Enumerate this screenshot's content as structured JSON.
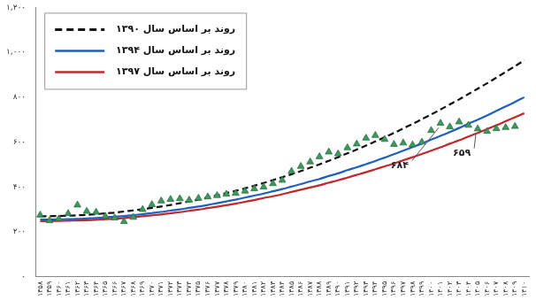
{
  "chart_data": {
    "type": "line",
    "categories": [
      "۱۳۵۸",
      "۱۳۵۹",
      "۱۳۶۰",
      "۱۳۶۱",
      "۱۳۶۲",
      "۱۳۶۳",
      "۱۳۶۴",
      "۱۳۶۵",
      "۱۳۶۶",
      "۱۳۶۷",
      "۱۳۶۸",
      "۱۳۶۹",
      "۱۳۷۰",
      "۱۳۷۱",
      "۱۳۷۲",
      "۱۳۷۳",
      "۱۳۷۴",
      "۱۳۷۵",
      "۱۳۷۶",
      "۱۳۷۷",
      "۱۳۷۸",
      "۱۳۷۹",
      "۱۳۸۰",
      "۱۳۸۱",
      "۱۳۸۲",
      "۱۳۸۳",
      "۱۳۸۴",
      "۱۳۸۵",
      "۱۳۸۶",
      "۱۳۸۷",
      "۱۳۸۸",
      "۱۳۸۹",
      "۱۳۹۰",
      "۱۳۹۱",
      "۱۳۹۲",
      "۱۳۹۳",
      "۱۳۹۴",
      "۱۳۹۵",
      "۱۳۹۶",
      "۱۳۹۷",
      "۱۳۹۸",
      "۱۳۹۹",
      "۱۴۰۰",
      "۱۴۰۱",
      "۱۴۰۲",
      "۱۴۰۳",
      "۱۴۰۴",
      "۱۴۰۵",
      "۱۴۰۶",
      "۱۴۰۷",
      "۱۴۰۸",
      "۱۴۰۹",
      "۱۴۱۰"
    ],
    "series": [
      {
        "name": "روند بر اساس سال ۱۳۹۰",
        "color": "#111111",
        "line_style": "dashed",
        "values": [
          270,
          270,
          271,
          272,
          274,
          276,
          279,
          283,
          286,
          291,
          296,
          301,
          307,
          313,
          320,
          328,
          336,
          344,
          353,
          363,
          373,
          383,
          394,
          406,
          418,
          431,
          444,
          457,
          471,
          486,
          501,
          517,
          533,
          550,
          567,
          585,
          603,
          622,
          641,
          661,
          681,
          702,
          723,
          745,
          768,
          790,
          814,
          838,
          862,
          887,
          913,
          938,
          965
        ]
      },
      {
        "name": "روند بر اساس سال ۱۳۹۴",
        "color": "#1f5fbf",
        "line_style": "solid",
        "values": [
          255,
          255,
          256,
          257,
          258,
          260,
          262,
          265,
          268,
          271,
          275,
          279,
          284,
          289,
          295,
          300,
          307,
          313,
          320,
          328,
          336,
          344,
          353,
          362,
          371,
          381,
          391,
          402,
          413,
          425,
          436,
          449,
          461,
          475,
          488,
          502,
          516,
          531,
          546,
          562,
          578,
          594,
          611,
          628,
          645,
          663,
          682,
          700,
          719,
          739,
          759,
          779,
          800
        ]
      },
      {
        "name": "روند بر اساس سال ۱۳۹۷",
        "color": "#c0282d",
        "line_style": "solid",
        "values": [
          248,
          248,
          249,
          250,
          251,
          252,
          254,
          257,
          259,
          262,
          266,
          270,
          274,
          278,
          283,
          288,
          294,
          299,
          306,
          312,
          319,
          326,
          334,
          342,
          351,
          359,
          368,
          378,
          388,
          398,
          408,
          419,
          430,
          442,
          454,
          466,
          479,
          492,
          505,
          519,
          533,
          547,
          562,
          577,
          593,
          608,
          625,
          641,
          658,
          675,
          693,
          711,
          729
        ]
      },
      {
        "color": "#3d9a5e",
        "marker": "triangle",
        "values": [
          275,
          250,
          258,
          282,
          320,
          292,
          288,
          270,
          262,
          246,
          265,
          300,
          322,
          338,
          345,
          348,
          342,
          350,
          356,
          362,
          368,
          372,
          382,
          392,
          400,
          415,
          430,
          470,
          492,
          512,
          535,
          556,
          548,
          575,
          592,
          618,
          630,
          612,
          590,
          596,
          588,
          600,
          652,
          684,
          668,
          690,
          675,
          659,
          648,
          660,
          665,
          670,
          null
        ]
      }
    ],
    "ylim": [
      0,
      1200
    ],
    "yticks": [
      {
        "value": 0,
        "label": "۰"
      },
      {
        "value": 200,
        "label": "۲۰۰"
      },
      {
        "value": 400,
        "label": "۴۰۰"
      },
      {
        "value": 600,
        "label": "۶۰۰"
      },
      {
        "value": 800,
        "label": "۸۰۰"
      },
      {
        "value": 1000,
        "label": "۱,۰۰۰"
      },
      {
        "value": 1200,
        "label": "۱,۲۰۰"
      }
    ],
    "annotations": [
      {
        "text": "۶۸۴",
        "category": "۱۴۰۱",
        "value": 684
      },
      {
        "text": "۶۵۹",
        "category": "۱۴۰۵",
        "value": 659
      }
    ],
    "grid": false,
    "legend": "top-left"
  }
}
